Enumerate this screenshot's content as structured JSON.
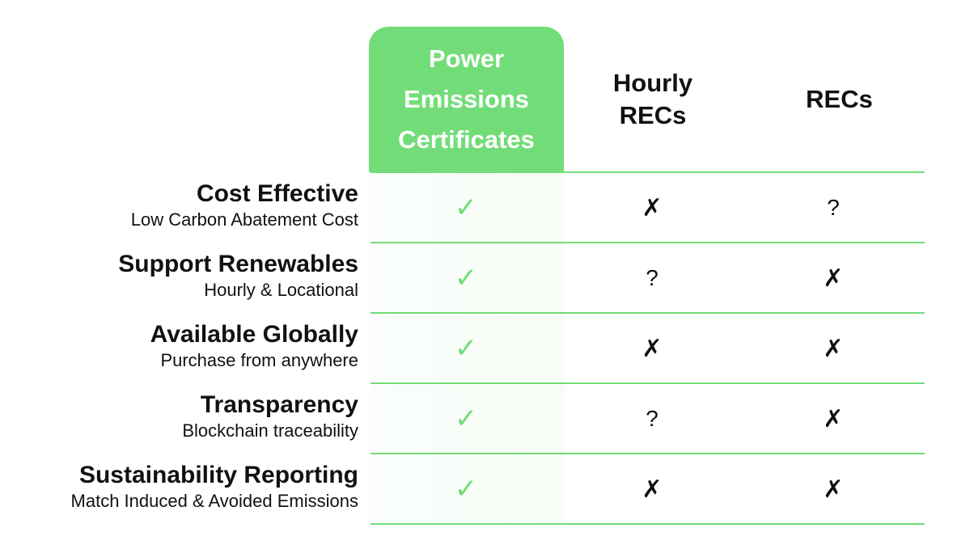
{
  "columns": {
    "pec": "Power Emissions Certificates",
    "hourly_recs": "Hourly RECs",
    "recs": "RECs"
  },
  "rows": [
    {
      "title": "Cost Effective",
      "subtitle": "Low Carbon Abatement Cost",
      "pec": "✓",
      "hourly_recs": "✗",
      "recs": "?"
    },
    {
      "title": "Support Renewables",
      "subtitle": "Hourly & Locational",
      "pec": "✓",
      "hourly_recs": "?",
      "recs": "✗"
    },
    {
      "title": "Available Globally",
      "subtitle": "Purchase from anywhere",
      "pec": "✓",
      "hourly_recs": "✗",
      "recs": "✗"
    },
    {
      "title": "Transparency",
      "subtitle": "Blockchain traceability",
      "pec": "✓",
      "hourly_recs": "?",
      "recs": "✗"
    },
    {
      "title": "Sustainability Reporting",
      "subtitle": "Match Induced & Avoided Emissions",
      "pec": "✓",
      "hourly_recs": "✗",
      "recs": "✗"
    }
  ],
  "colors": {
    "accent": "#72dd78",
    "text": "#111111",
    "header_text_on_accent": "#ffffff"
  }
}
